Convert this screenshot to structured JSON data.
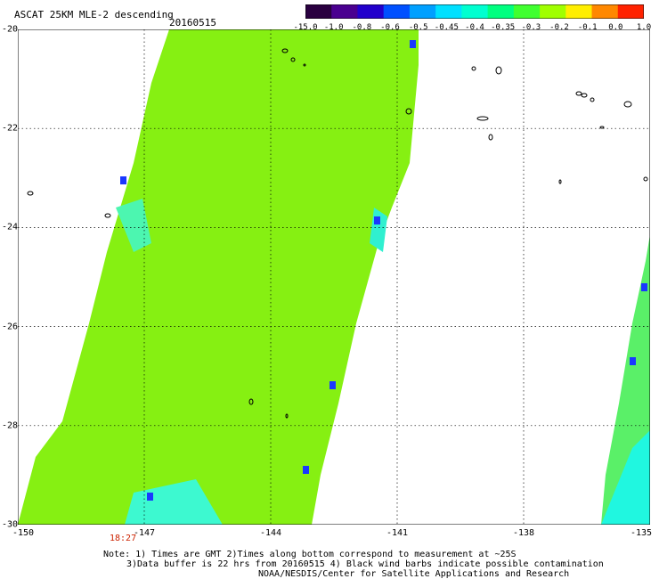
{
  "header": {
    "title": "ASCAT 25KM MLE-2 descending",
    "date": "20160515"
  },
  "colorbar": {
    "labels": [
      "-15.0",
      "-1.0",
      "-0.8",
      "-0.6",
      "-0.5",
      "-0.45",
      "-0.4",
      "-0.35",
      "-0.3",
      "-0.2",
      "-0.1",
      "0.0",
      "1.0"
    ],
    "colors": [
      "#2a0040",
      "#4a0090",
      "#2200cc",
      "#0050ff",
      "#00a0ff",
      "#00e0ff",
      "#00ffd0",
      "#00ff80",
      "#40ff30",
      "#a0ff00",
      "#ffee00",
      "#ff8800",
      "#ff2200"
    ]
  },
  "axes": {
    "lon_labels": [
      "-150",
      "-147",
      "-144",
      "-141",
      "-138",
      "-135"
    ],
    "lat_labels": [
      "-20",
      "-22",
      "-24",
      "-26",
      "-28",
      "-30"
    ],
    "lon_range": [
      -150,
      -135
    ],
    "lat_range": [
      -20,
      -30
    ]
  },
  "time_label": "18:27",
  "notes": {
    "line1": "Note: 1) Times are GMT 2)Times along bottom correspond to measurement at ~25S",
    "line2": "3)Data buffer is 22 hrs from 20160515 4) Black wind barbs indicate possible contamination",
    "line3": "NOAA/NESDIS/Center for Satellite Applications and Research"
  }
}
